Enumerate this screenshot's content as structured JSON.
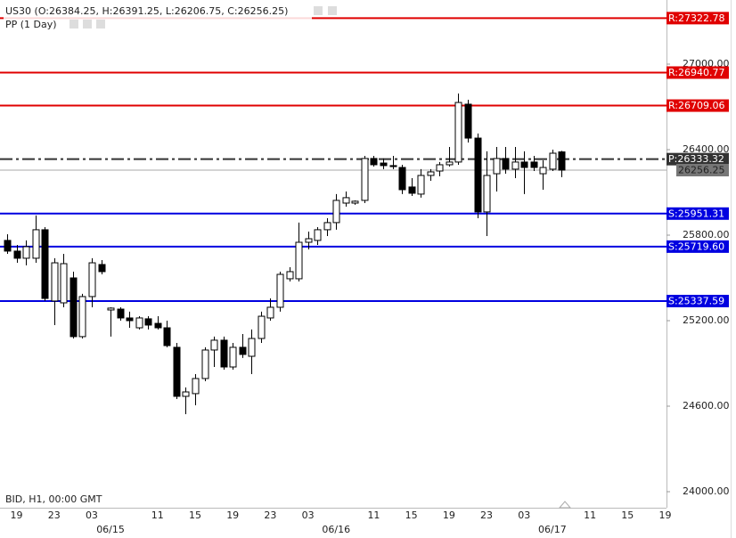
{
  "chart_data": {
    "type": "candlestick",
    "title": "US30 (O:26384.25, H:26391.25, L:26206.75, C:26256.25)",
    "subtitle": "PP (1 Day)",
    "footer": "BID, H1, 00:00 GMT",
    "categories": [
      null,
      "19",
      null,
      null,
      null,
      "23",
      null,
      null,
      null,
      "03",
      null,
      null,
      null,
      null,
      null,
      null,
      "11",
      null,
      null,
      null,
      "15",
      null,
      null,
      null,
      "19",
      null,
      null,
      null,
      "23",
      null,
      null,
      null,
      "03",
      null,
      null,
      null,
      null,
      null,
      null,
      "11",
      null,
      null,
      null,
      "15",
      null,
      null,
      null,
      "19",
      null,
      null,
      null,
      "23",
      null,
      null,
      null,
      "03",
      null,
      null,
      null,
      null,
      null,
      null,
      "11",
      null,
      null,
      null,
      "15",
      null,
      null,
      null,
      "19"
    ],
    "dates": [
      null,
      null,
      null,
      null,
      null,
      null,
      null,
      null,
      null,
      null,
      null,
      "06/15",
      null,
      null,
      null,
      null,
      null,
      null,
      null,
      null,
      null,
      null,
      null,
      null,
      null,
      null,
      null,
      null,
      null,
      null,
      null,
      null,
      null,
      null,
      null,
      "06/16",
      null,
      null,
      null,
      null,
      null,
      null,
      null,
      null,
      null,
      null,
      null,
      null,
      null,
      null,
      null,
      null,
      null,
      null,
      null,
      null,
      null,
      null,
      "06/17",
      null,
      null,
      null,
      null,
      null,
      null,
      null,
      null,
      null,
      null,
      null,
      null
    ],
    "open": [
      25763,
      25688,
      25638,
      25638,
      25838,
      25338,
      25325,
      25500,
      25088,
      25369,
      25594,
      25275,
      25281,
      25219,
      25150,
      25213,
      25181,
      25150,
      25013,
      24669,
      24688,
      24794,
      24994,
      25063,
      24875,
      25013,
      24950,
      25075,
      25219,
      25294,
      25494,
      25494,
      25750,
      25763,
      25838,
      25888,
      26025,
      26025,
      26044,
      26338,
      26306,
      26288,
      26275,
      26138,
      26088,
      26219,
      26250,
      26294,
      26313,
      26719,
      26481,
      25963,
      26231,
      26338,
      26263,
      26313,
      26313,
      26231,
      26263,
      26384.25,
      null,
      null,
      null,
      null,
      null,
      null,
      null,
      null,
      null,
      null,
      null
    ],
    "high": [
      25806,
      25731,
      25763,
      25938,
      25856,
      25638,
      25669,
      25544,
      25388,
      25638,
      25625,
      25294,
      25294,
      25263,
      25231,
      25231,
      25231,
      25200,
      25044,
      24731,
      24825,
      25013,
      25088,
      25088,
      25044,
      25106,
      25138,
      25263,
      25356,
      25544,
      25575,
      25888,
      25825,
      25856,
      25919,
      26088,
      26106,
      26044,
      26356,
      26356,
      26338,
      26356,
      26294,
      26200,
      26263,
      26263,
      26313,
      26419,
      26794,
      26750,
      26513,
      26388,
      26419,
      26419,
      26419,
      26388,
      26356,
      26325,
      26400,
      26391.25,
      null,
      null,
      null,
      null,
      null,
      null,
      null,
      null,
      null,
      null,
      null
    ],
    "low": [
      25669,
      25606,
      25588,
      25606,
      25338,
      25169,
      25294,
      25075,
      25075,
      25294,
      25525,
      25088,
      25200,
      25150,
      25138,
      25138,
      25138,
      25013,
      24650,
      24544,
      24606,
      24775,
      24875,
      24856,
      24856,
      24938,
      24825,
      25044,
      25200,
      25263,
      25475,
      25475,
      25700,
      25731,
      25794,
      25838,
      26000,
      26013,
      26025,
      26281,
      26263,
      26263,
      26088,
      26075,
      26063,
      26181,
      26213,
      26281,
      26294,
      26450,
      25919,
      25794,
      26106,
      26231,
      26200,
      26088,
      26250,
      26119,
      26250,
      26206.75,
      null,
      null,
      null,
      null,
      null,
      null,
      null,
      null,
      null,
      null,
      null
    ],
    "close": [
      25688,
      25638,
      25719,
      25838,
      25356,
      25606,
      25600,
      25088,
      25369,
      25606,
      25544,
      25288,
      25219,
      25200,
      25219,
      25169,
      25150,
      25025,
      24669,
      24700,
      24794,
      24994,
      25063,
      24875,
      25013,
      24963,
      25075,
      25231,
      25294,
      25525,
      25544,
      25750,
      25775,
      25838,
      25888,
      26044,
      26063,
      26038,
      26338,
      26294,
      26288,
      26281,
      26119,
      26094,
      26219,
      26244,
      26294,
      26313,
      26731,
      26481,
      25963,
      26219,
      26338,
      26263,
      26313,
      26275,
      26275,
      26275,
      26375,
      26256.25,
      null,
      null,
      null,
      null,
      null,
      null,
      null,
      null,
      null,
      null,
      null
    ],
    "up_color": "#ffffff",
    "down_color": "#000000",
    "levels": {
      "values": [
        27322.78,
        26940.77,
        26709.06,
        26333.32,
        25951.31,
        25719.6,
        25337.59
      ],
      "value_labels": [
        "R:27322.78",
        "R:26940.77",
        "R:26709.06",
        "P:26333.32",
        "S:25951.31",
        "S:25719.60",
        "S:25337.59"
      ],
      "colors": [
        "#e00000",
        "#e00000",
        "#e00000",
        "#333333",
        "#0000e0",
        "#0000e0",
        "#0000e0"
      ]
    },
    "last_price": 26256.25,
    "ylim": [
      23887.5,
      27450
    ],
    "yticks": [
      {
        "value": 24000,
        "label": "24000.00"
      },
      {
        "value": 24600,
        "label": "24600.00"
      },
      {
        "value": 25200,
        "label": "25200.00"
      },
      {
        "value": 25800,
        "label": "25800.00"
      },
      {
        "value": 26400,
        "label": "26400.00"
      },
      {
        "value": 27000,
        "label": "27000.00"
      }
    ]
  }
}
